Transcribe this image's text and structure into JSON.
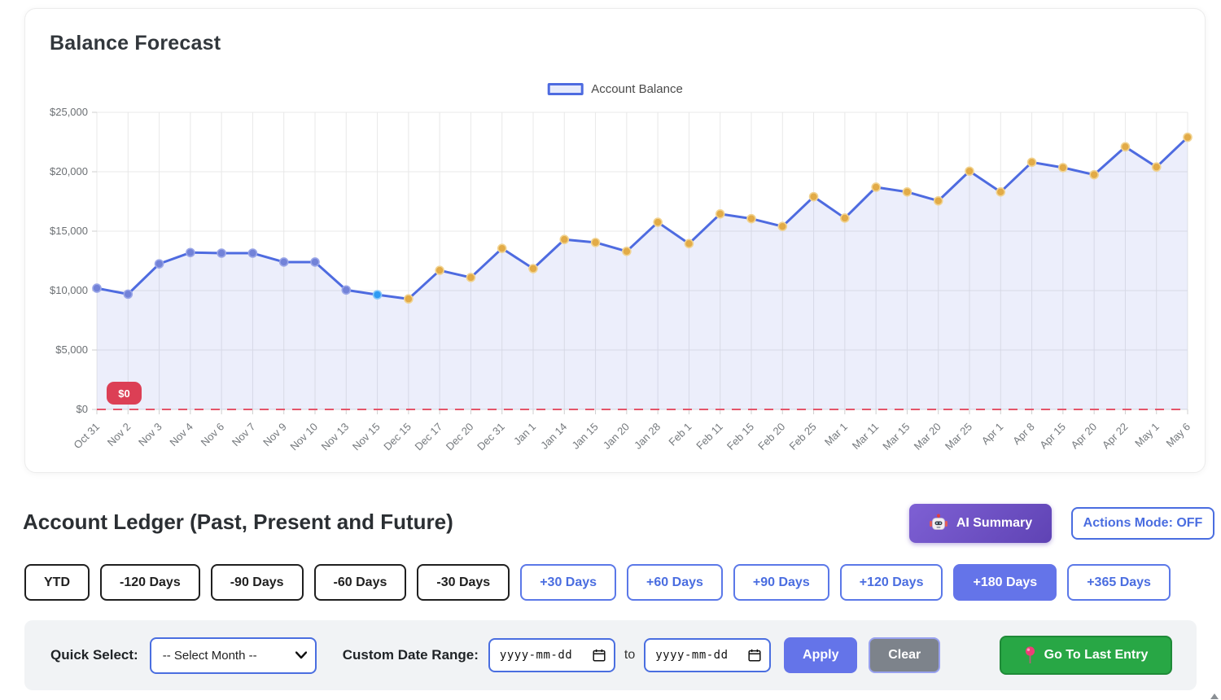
{
  "chart": {
    "title": "Balance Forecast",
    "legend_label": "Account Balance",
    "zero_badge_label": "$0"
  },
  "chart_data": {
    "type": "area",
    "title": "Balance Forecast",
    "series_name": "Account Balance",
    "x": [
      "Oct 31",
      "Nov 2",
      "Nov 3",
      "Nov 4",
      "Nov 6",
      "Nov 7",
      "Nov 9",
      "Nov 10",
      "Nov 13",
      "Nov 15",
      "Dec 15",
      "Dec 17",
      "Dec 20",
      "Dec 31",
      "Jan 1",
      "Jan 14",
      "Jan 15",
      "Jan 20",
      "Jan 28",
      "Feb 1",
      "Feb 11",
      "Feb 15",
      "Feb 20",
      "Feb 25",
      "Mar 1",
      "Mar 11",
      "Mar 15",
      "Mar 20",
      "Mar 25",
      "Apr 1",
      "Apr 8",
      "Apr 15",
      "Apr 20",
      "Apr 22",
      "May 1",
      "May 6"
    ],
    "values": [
      10200,
      9700,
      12250,
      13200,
      13150,
      13150,
      12400,
      12400,
      10050,
      9650,
      9300,
      11700,
      11100,
      13550,
      11850,
      14300,
      14050,
      13300,
      15750,
      13950,
      16450,
      16050,
      15400,
      17900,
      16100,
      18700,
      18300,
      17550,
      20050,
      18300,
      20800,
      20350,
      19750,
      22100,
      20400,
      22900
    ],
    "point_status": [
      "past",
      "past",
      "past",
      "past",
      "past",
      "past",
      "past",
      "past",
      "past",
      "today",
      "future",
      "future",
      "future",
      "future",
      "future",
      "future",
      "future",
      "future",
      "future",
      "future",
      "future",
      "future",
      "future",
      "future",
      "future",
      "future",
      "future",
      "future",
      "future",
      "future",
      "future",
      "future",
      "future",
      "future",
      "future",
      "future"
    ],
    "ylim": [
      0,
      25000
    ],
    "y_tick_step": 5000,
    "grid": true,
    "legend_position": "top",
    "zero_line": true,
    "zero_badge": "$0",
    "colors": {
      "line": "#4e6be0",
      "fill": "rgba(96,118,226,0.12)",
      "past_point": "#7282d8",
      "past_point_border": "#9aa6e8",
      "today_point": "#2e9bf3",
      "today_point_border": "#86c7f9",
      "future_point": "#e2ab47",
      "future_point_border": "#f1d391",
      "zero_line": "#e5556a",
      "zero_badge_bg": "#dc3f55",
      "grid": "#e8e8e8",
      "axis_text": "#6b6f73"
    }
  },
  "ledger": {
    "title": "Account Ledger (Past, Present and Future)",
    "ai_summary_label": "AI Summary",
    "ai_icon": "robot-icon",
    "actions_mode_label": "Actions Mode: OFF",
    "range_buttons": [
      {
        "label": "YTD",
        "variant": "dark"
      },
      {
        "label": "-120 Days",
        "variant": "dark"
      },
      {
        "label": "-90 Days",
        "variant": "dark"
      },
      {
        "label": "-60 Days",
        "variant": "dark"
      },
      {
        "label": "-30 Days",
        "variant": "dark"
      },
      {
        "label": "+30 Days",
        "variant": "blue"
      },
      {
        "label": "+60 Days",
        "variant": "blue"
      },
      {
        "label": "+90 Days",
        "variant": "blue"
      },
      {
        "label": "+120 Days",
        "variant": "blue"
      },
      {
        "label": "+180 Days",
        "variant": "selected"
      },
      {
        "label": "+365 Days",
        "variant": "blue"
      }
    ]
  },
  "filters": {
    "quick_select_label": "Quick Select:",
    "month_select_value": "-- Select Month --",
    "custom_range_label": "Custom Date Range:",
    "date_from_value": "yyyy-mm-dd",
    "date_to_value": "yyyy-mm-dd",
    "to_label": "to",
    "apply_label": "Apply",
    "clear_label": "Clear",
    "go_last_label": "Go To Last Entry",
    "go_last_icon": "pushpin-icon"
  }
}
